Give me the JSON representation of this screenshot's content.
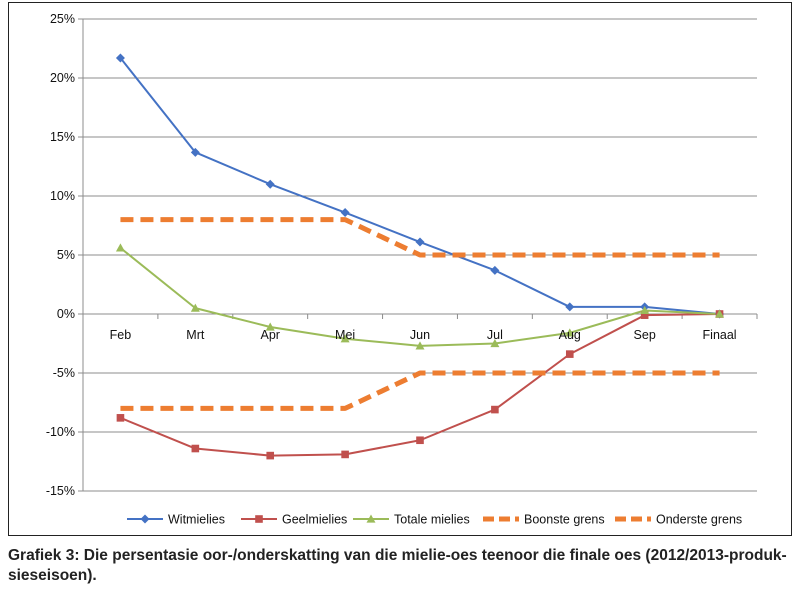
{
  "chart_data": {
    "type": "line",
    "categories": [
      "Feb",
      "Mrt",
      "Apr",
      "Mei",
      "Jun",
      "Jul",
      "Aug",
      "Sep",
      "Finaal"
    ],
    "y_ticks": [
      "25%",
      "20%",
      "15%",
      "10%",
      "5%",
      "0%",
      "-5%",
      "-10%",
      "-15%"
    ],
    "ylim": [
      -15,
      25
    ],
    "y_unit": "%",
    "grid": true,
    "legend_position": "bottom",
    "series": [
      {
        "name": "Witmielies",
        "color": "#4472C4",
        "marker": "diamond",
        "dashed": false,
        "values": [
          21.7,
          13.7,
          11.0,
          8.6,
          6.1,
          3.7,
          0.6,
          0.6,
          0.0
        ]
      },
      {
        "name": "Geelmielies",
        "color": "#C0504D",
        "marker": "square",
        "dashed": false,
        "values": [
          -8.8,
          -11.4,
          -12.0,
          -11.9,
          -10.7,
          -8.1,
          -3.4,
          -0.1,
          0.0
        ]
      },
      {
        "name": "Totale mielies",
        "color": "#9BBB59",
        "marker": "triangle",
        "dashed": false,
        "values": [
          5.6,
          0.5,
          -1.1,
          -2.1,
          -2.7,
          -2.5,
          -1.6,
          0.3,
          0.0
        ]
      },
      {
        "name": "Boonste grens",
        "color": "#ED7D31",
        "marker": "none",
        "dashed": true,
        "values": [
          8,
          8,
          8,
          8,
          5,
          5,
          5,
          5,
          5
        ]
      },
      {
        "name": "Onderste grens",
        "color": "#ED7D31",
        "marker": "none",
        "dashed": true,
        "values": [
          -8,
          -8,
          -8,
          -8,
          -5,
          -5,
          -5,
          -5,
          -5
        ]
      }
    ]
  },
  "caption": "Grafiek 3: Die persentasie oor-/onderskatting van die mielie-oes teenoor die finale oes (2012/2013-produk-sieseisoen)."
}
